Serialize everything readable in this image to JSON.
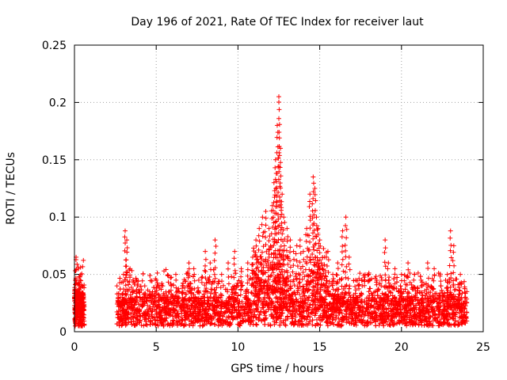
{
  "chart_data": {
    "type": "scatter",
    "title": "Day 196 of 2021, Rate Of TEC Index for receiver laut",
    "xlabel": "GPS time / hours",
    "ylabel": "ROTI / TECUs",
    "xlim": [
      0,
      25
    ],
    "ylim": [
      0,
      0.25
    ],
    "x_ticks": [
      "0",
      "5",
      "10",
      "15",
      "20",
      "25"
    ],
    "y_ticks": [
      "0",
      "0.05",
      "0.1",
      "0.15",
      "0.2",
      "0.25"
    ],
    "grid": true,
    "marker": "+",
    "marker_color": "#ff0000",
    "series": [
      {
        "x": [
          0.0,
          0.05,
          0.1,
          0.15,
          0.2,
          0.25,
          0.3,
          0.35,
          0.4,
          0.45,
          0.5,
          0.55,
          2.6,
          2.8,
          3.0,
          3.1,
          3.2,
          3.4,
          3.6,
          3.8,
          4.0,
          4.3,
          4.6,
          5.0,
          5.4,
          5.8,
          6.2,
          6.6,
          7.0,
          7.3,
          7.6,
          8.0,
          8.3,
          8.6,
          9.0,
          9.4,
          9.8,
          10.2,
          10.6,
          10.9,
          11.1,
          11.3,
          11.5,
          11.7,
          11.9,
          12.1,
          12.2,
          12.3,
          12.4,
          12.5,
          12.6,
          12.7,
          12.8,
          13.0,
          13.2,
          13.4,
          13.6,
          13.8,
          14.0,
          14.2,
          14.4,
          14.6,
          14.7,
          14.8,
          14.9,
          15.0,
          15.1,
          15.3,
          15.5,
          15.8,
          16.1,
          16.4,
          16.6,
          16.8,
          17.2,
          17.6,
          18.0,
          18.4,
          18.8,
          19.0,
          19.2,
          19.6,
          20.0,
          20.4,
          20.8,
          21.2,
          21.6,
          22.0,
          22.4,
          22.8,
          23.0,
          23.2,
          23.6,
          24.0
        ],
        "y": [
          0.03,
          0.025,
          0.065,
          0.02,
          0.035,
          0.055,
          0.03,
          0.045,
          0.02,
          0.04,
          0.015,
          0.03,
          0.04,
          0.03,
          0.05,
          0.088,
          0.08,
          0.055,
          0.035,
          0.045,
          0.03,
          0.04,
          0.035,
          0.045,
          0.04,
          0.035,
          0.05,
          0.04,
          0.06,
          0.055,
          0.045,
          0.07,
          0.06,
          0.08,
          0.05,
          0.06,
          0.07,
          0.055,
          0.06,
          0.065,
          0.08,
          0.09,
          0.1,
          0.105,
          0.09,
          0.11,
          0.13,
          0.15,
          0.18,
          0.205,
          0.16,
          0.12,
          0.1,
          0.09,
          0.08,
          0.07,
          0.075,
          0.08,
          0.07,
          0.09,
          0.12,
          0.135,
          0.125,
          0.1,
          0.09,
          0.08,
          0.06,
          0.065,
          0.07,
          0.05,
          0.06,
          0.088,
          0.1,
          0.065,
          0.045,
          0.04,
          0.05,
          0.035,
          0.045,
          0.08,
          0.06,
          0.055,
          0.05,
          0.06,
          0.05,
          0.045,
          0.06,
          0.055,
          0.04,
          0.05,
          0.088,
          0.075,
          0.05,
          0.035
        ],
        "range_note": "dense band of points roughly between 0.005 and 0.04 across 0–0.6 h and 2.6–24 h"
      }
    ]
  }
}
